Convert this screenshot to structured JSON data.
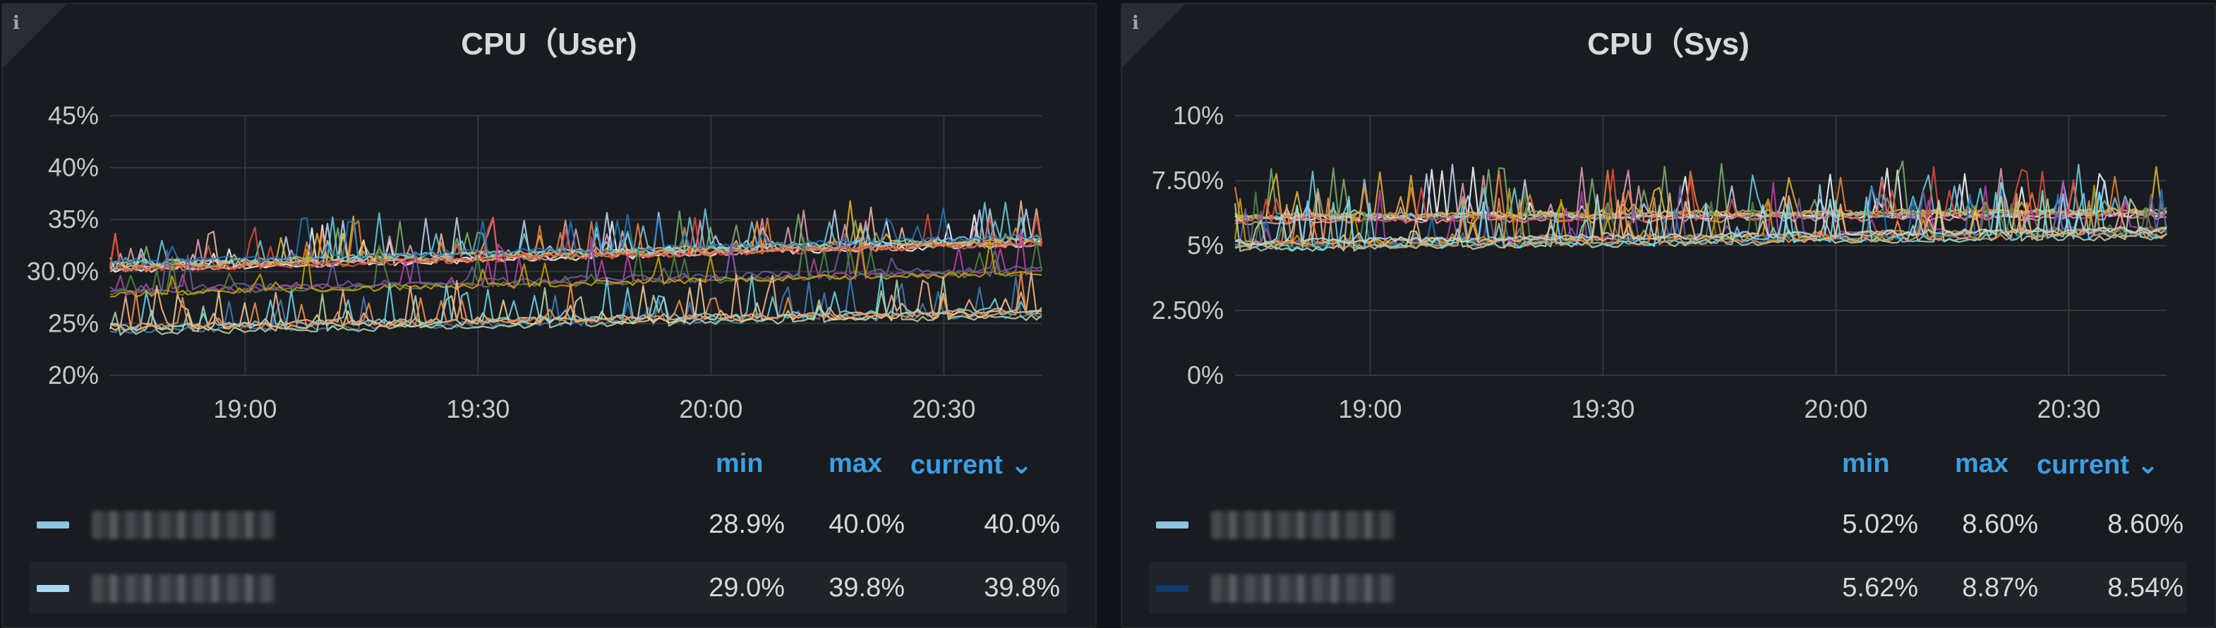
{
  "panels": [
    {
      "title": "CPU（User)",
      "info_icon": "i",
      "y_ticks": [
        "45%",
        "40%",
        "35%",
        "30.0%",
        "25%",
        "20%"
      ],
      "x_ticks": [
        "19:00",
        "19:30",
        "20:00",
        "20:30"
      ],
      "legend_headers": {
        "min": "min",
        "max": "max",
        "current": "current ⌄"
      },
      "legend_rows": [
        {
          "name": "",
          "color": "#8ac6e0",
          "min": "28.9%",
          "max": "40.0%",
          "current": "40.0%"
        },
        {
          "name": "",
          "color": "#a8d8f0",
          "min": "29.0%",
          "max": "39.8%",
          "current": "39.8%"
        }
      ]
    },
    {
      "title": "CPU（Sys)",
      "info_icon": "i",
      "y_ticks": [
        "10%",
        "7.50%",
        "5%",
        "2.50%",
        "0%"
      ],
      "x_ticks": [
        "19:00",
        "19:30",
        "20:00",
        "20:30"
      ],
      "legend_headers": {
        "min": "min",
        "max": "max",
        "current": "current ⌄"
      },
      "legend_rows": [
        {
          "name": "",
          "color": "#8ac6e0",
          "min": "5.02%",
          "max": "8.60%",
          "current": "8.60%"
        },
        {
          "name": "",
          "color": "#0e3a6e",
          "min": "5.62%",
          "max": "8.87%",
          "current": "8.54%"
        }
      ]
    }
  ],
  "chart_data": [
    {
      "type": "line",
      "title": "CPU（User)",
      "x_ticks": [
        "19:00",
        "19:30",
        "20:00",
        "20:30"
      ],
      "ylim": [
        20,
        45
      ],
      "y_unit": "%",
      "grid": true,
      "series_colors": [
        "#ffffff",
        "#f2c0a0",
        "#e8a0b8",
        "#c0d8f8",
        "#7eb26d",
        "#eab839",
        "#6ed0e0",
        "#ef843c",
        "#e24d42",
        "#1f78c1",
        "#ba43a9",
        "#705da0",
        "#508642",
        "#cca300",
        "#447ebc",
        "#f9ba8f",
        "#b7dbab",
        "#f4d598",
        "#70dbed",
        "#f9934e"
      ],
      "bands": [
        {
          "start": 30.5,
          "end": 33.0,
          "count": 10
        },
        {
          "start": 28.0,
          "end": 30.0,
          "count": 4
        },
        {
          "start": 24.5,
          "end": 26.0,
          "count": 6
        }
      ]
    },
    {
      "type": "line",
      "title": "CPU（Sys)",
      "x_ticks": [
        "19:00",
        "19:30",
        "20:00",
        "20:30"
      ],
      "ylim": [
        0,
        10
      ],
      "y_unit": "%",
      "grid": true,
      "series_colors": [
        "#ffffff",
        "#c0d8f8",
        "#e8a0b8",
        "#7eb26d",
        "#eab839",
        "#6ed0e0",
        "#ef843c",
        "#e24d42",
        "#1f78c1",
        "#ba43a9",
        "#705da0",
        "#508642",
        "#cca300",
        "#f9ba8f",
        "#b7dbab",
        "#70dbed",
        "#f9934e",
        "#a0e0f0"
      ],
      "bands": [
        {
          "start": 6.0,
          "end": 6.2,
          "count": 8
        },
        {
          "start": 5.0,
          "end": 5.5,
          "count": 10
        }
      ]
    }
  ]
}
